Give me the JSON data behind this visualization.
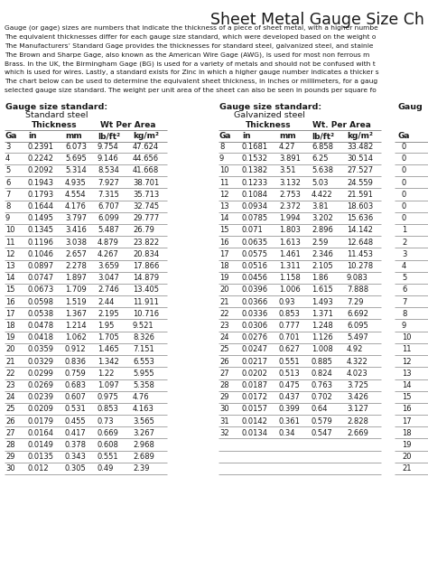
{
  "title": "Sheet Metal Gauge Size Ch",
  "description_lines": [
    "Gauge (or gage) sizes are numbers that indicate the thickness of a piece of sheet metal, with a higher numbe",
    "The equivalent thicknesses differ for each gauge size standard, which were developed based on the weight o",
    "The Manufacturers’ Standard Gage provides the thicknesses for standard steel, galvanized steel, and stainle",
    "The Brown and Sharpe Gage, also known as the American Wire Gage (AWG), is used for most non ferrous m",
    "Brass. In the UK, the Birmingham Gage (BG) is used for a variety of metals and should not be confused with t",
    "which is used for wires. Lastly, a standard exists for Zinc in which a higher gauge number indicates a thicker s",
    "The chart below can be used to determine the equivalent sheet thickness, in inches or millimeters, for a gaug",
    "selected gauge size standard. The weight per unit area of the sheet can also be seen in pounds per square fo"
  ],
  "standard_steel_rows": [
    [
      3,
      "0.2391",
      "6.073",
      "9.754",
      "47.624"
    ],
    [
      4,
      "0.2242",
      "5.695",
      "9.146",
      "44.656"
    ],
    [
      5,
      "0.2092",
      "5.314",
      "8.534",
      "41.668"
    ],
    [
      6,
      "0.1943",
      "4.935",
      "7.927",
      "38.701"
    ],
    [
      7,
      "0.1793",
      "4.554",
      "7.315",
      "35.713"
    ],
    [
      8,
      "0.1644",
      "4.176",
      "6.707",
      "32.745"
    ],
    [
      9,
      "0.1495",
      "3.797",
      "6.099",
      "29.777"
    ],
    [
      10,
      "0.1345",
      "3.416",
      "5.487",
      "26.79"
    ],
    [
      11,
      "0.1196",
      "3.038",
      "4.879",
      "23.822"
    ],
    [
      12,
      "0.1046",
      "2.657",
      "4.267",
      "20.834"
    ],
    [
      13,
      "0.0897",
      "2.278",
      "3.659",
      "17.866"
    ],
    [
      14,
      "0.0747",
      "1.897",
      "3.047",
      "14.879"
    ],
    [
      15,
      "0.0673",
      "1.709",
      "2.746",
      "13.405"
    ],
    [
      16,
      "0.0598",
      "1.519",
      "2.44",
      "11.911"
    ],
    [
      17,
      "0.0538",
      "1.367",
      "2.195",
      "10.716"
    ],
    [
      18,
      "0.0478",
      "1.214",
      "1.95",
      "9.521"
    ],
    [
      19,
      "0.0418",
      "1.062",
      "1.705",
      "8.326"
    ],
    [
      20,
      "0.0359",
      "0.912",
      "1.465",
      "7.151"
    ],
    [
      21,
      "0.0329",
      "0.836",
      "1.342",
      "6.553"
    ],
    [
      22,
      "0.0299",
      "0.759",
      "1.22",
      "5.955"
    ],
    [
      23,
      "0.0269",
      "0.683",
      "1.097",
      "5.358"
    ],
    [
      24,
      "0.0239",
      "0.607",
      "0.975",
      "4.76"
    ],
    [
      25,
      "0.0209",
      "0.531",
      "0.853",
      "4.163"
    ],
    [
      26,
      "0.0179",
      "0.455",
      "0.73",
      "3.565"
    ],
    [
      27,
      "0.0164",
      "0.417",
      "0.669",
      "3.267"
    ],
    [
      28,
      "0.0149",
      "0.378",
      "0.608",
      "2.968"
    ],
    [
      29,
      "0.0135",
      "0.343",
      "0.551",
      "2.689"
    ],
    [
      30,
      "0.012",
      "0.305",
      "0.49",
      "2.39"
    ]
  ],
  "galvanized_steel_rows": [
    [
      8,
      "0.1681",
      "4.27",
      "6.858",
      "33.482"
    ],
    [
      9,
      "0.1532",
      "3.891",
      "6.25",
      "30.514"
    ],
    [
      10,
      "0.1382",
      "3.51",
      "5.638",
      "27.527"
    ],
    [
      11,
      "0.1233",
      "3.132",
      "5.03",
      "24.559"
    ],
    [
      12,
      "0.1084",
      "2.753",
      "4.422",
      "21.591"
    ],
    [
      13,
      "0.0934",
      "2.372",
      "3.81",
      "18.603"
    ],
    [
      14,
      "0.0785",
      "1.994",
      "3.202",
      "15.636"
    ],
    [
      15,
      "0.071",
      "1.803",
      "2.896",
      "14.142"
    ],
    [
      16,
      "0.0635",
      "1.613",
      "2.59",
      "12.648"
    ],
    [
      17,
      "0.0575",
      "1.461",
      "2.346",
      "11.453"
    ],
    [
      18,
      "0.0516",
      "1.311",
      "2.105",
      "10.278"
    ],
    [
      19,
      "0.0456",
      "1.158",
      "1.86",
      "9.083"
    ],
    [
      20,
      "0.0396",
      "1.006",
      "1.615",
      "7.888"
    ],
    [
      21,
      "0.0366",
      "0.93",
      "1.493",
      "7.29"
    ],
    [
      22,
      "0.0336",
      "0.853",
      "1.371",
      "6.692"
    ],
    [
      23,
      "0.0306",
      "0.777",
      "1.248",
      "6.095"
    ],
    [
      24,
      "0.0276",
      "0.701",
      "1.126",
      "5.497"
    ],
    [
      25,
      "0.0247",
      "0.627",
      "1.008",
      "4.92"
    ],
    [
      26,
      "0.0217",
      "0.551",
      "0.885",
      "4.322"
    ],
    [
      27,
      "0.0202",
      "0.513",
      "0.824",
      "4.023"
    ],
    [
      28,
      "0.0187",
      "0.475",
      "0.763",
      "3.725"
    ],
    [
      29,
      "0.0172",
      "0.437",
      "0.702",
      "3.426"
    ],
    [
      30,
      "0.0157",
      "0.399",
      "0.64",
      "3.127"
    ],
    [
      31,
      "0.0142",
      "0.361",
      "0.579",
      "2.828"
    ],
    [
      32,
      "0.0134",
      "0.34",
      "0.547",
      "2.669"
    ]
  ],
  "third_col_ga": [
    0,
    0,
    0,
    0,
    0,
    0,
    0,
    1,
    2,
    3,
    4,
    5,
    6,
    7,
    8,
    9,
    10,
    11,
    12,
    13,
    14,
    15,
    16,
    17,
    18,
    19,
    20,
    21
  ],
  "bg_color": "#ffffff",
  "text_color": "#1a1a1a",
  "line_color": "#666666"
}
